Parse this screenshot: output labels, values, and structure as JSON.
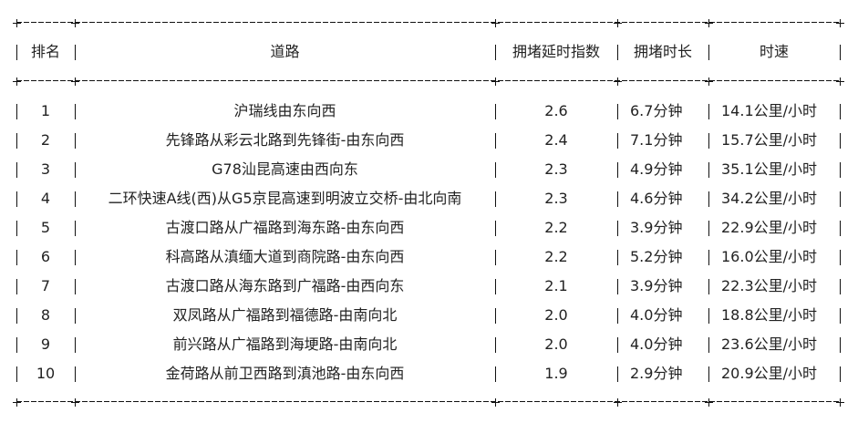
{
  "table": {
    "headers": [
      "排名",
      "道路",
      "拥堵延时指数",
      "拥堵时长",
      "时速"
    ],
    "rows": [
      {
        "rank": "1",
        "road": "沪瑞线由东向西",
        "index": "2.6",
        "duration": "6.7分钟",
        "speed": "14.1公里/小时"
      },
      {
        "rank": "2",
        "road": "先锋路从彩云北路到先锋街-由东向西",
        "index": "2.4",
        "duration": "7.1分钟",
        "speed": "15.7公里/小时"
      },
      {
        "rank": "3",
        "road": "G78汕昆高速由西向东",
        "index": "2.3",
        "duration": "4.9分钟",
        "speed": "35.1公里/小时"
      },
      {
        "rank": "4",
        "road": "二环快速A线(西)从G5京昆高速到明波立交桥-由北向南",
        "index": "2.3",
        "duration": "4.6分钟",
        "speed": "34.2公里/小时"
      },
      {
        "rank": "5",
        "road": "古渡口路从广福路到海东路-由东向西",
        "index": "2.2",
        "duration": "3.9分钟",
        "speed": "22.9公里/小时"
      },
      {
        "rank": "6",
        "road": "科高路从滇缅大道到商院路-由东向西",
        "index": "2.2",
        "duration": "5.2分钟",
        "speed": "16.0公里/小时"
      },
      {
        "rank": "7",
        "road": "古渡口路从海东路到广福路-由西向东",
        "index": "2.1",
        "duration": "3.9分钟",
        "speed": "22.3公里/小时"
      },
      {
        "rank": "8",
        "road": "双凤路从广福路到福德路-由南向北",
        "index": "2.0",
        "duration": "4.0分钟",
        "speed": "18.8公里/小时"
      },
      {
        "rank": "9",
        "road": "前兴路从广福路到海埂路-由南向北",
        "index": "2.0",
        "duration": "4.0分钟",
        "speed": "23.6公里/小时"
      },
      {
        "rank": "10",
        "road": "金荷路从前卫西路到滇池路-由东向西",
        "index": "1.9",
        "duration": "2.9分钟",
        "speed": "20.9公里/小时"
      }
    ]
  }
}
